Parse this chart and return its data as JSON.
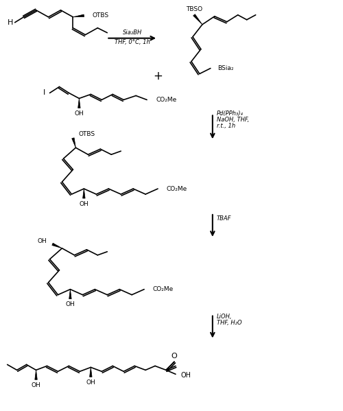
{
  "bg_color": "#ffffff",
  "line_color": "#000000",
  "text_color": "#000000",
  "labels": {
    "H": "H",
    "OTBS": "OTBS",
    "TBSO": "TBSO",
    "BSia2": "BSia₂",
    "I": "I",
    "OH": "OH",
    "CO2Me": "CO₂Me",
    "plus": "+",
    "Sia2BH": "Sia₂BH",
    "THF0C": "THF, 0°C, 1h",
    "Pd": "Pd(PPh₃)₄",
    "NaOH": "NaOH, THF,",
    "rt": "r.t., 1h",
    "TBAF": "TBAF",
    "LiOH": "LiOH,",
    "THFH2O": "THF, H₂O",
    "O": "O"
  }
}
